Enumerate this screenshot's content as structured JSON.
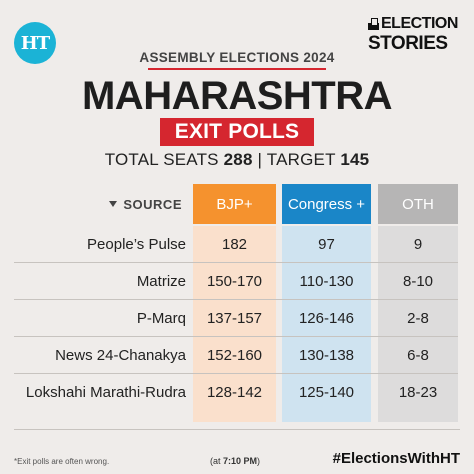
{
  "brand": {
    "logo_text": "HT",
    "badge_line1": "ELECTION",
    "badge_line2": "STORIES"
  },
  "header": {
    "subtitle": "ASSEMBLY ELECTIONS 2024",
    "title": "MAHARASHTRA",
    "badge": "EXIT POLLS",
    "seats_label": "TOTAL SEATS",
    "seats_value": "288",
    "separator": "|",
    "target_label": "TARGET",
    "target_value": "145"
  },
  "table": {
    "source_header": "SOURCE",
    "columns": [
      {
        "label": "BJP+",
        "color": "#f5922e"
      },
      {
        "label": "Congress +",
        "color": "#1a86c8"
      },
      {
        "label": "OTH",
        "color": "#b6b5b5"
      }
    ],
    "rows": [
      {
        "source": "People’s Pulse",
        "bjp": "182",
        "congress": "97",
        "oth": "9"
      },
      {
        "source": "Matrize",
        "bjp": "150-170",
        "congress": "110-130",
        "oth": "8-10"
      },
      {
        "source": "P-Marq",
        "bjp": "137-157",
        "congress": "126-146",
        "oth": "2-8"
      },
      {
        "source": "News 24-Chanakya",
        "bjp": "152-160",
        "congress": "130-138",
        "oth": "6-8"
      },
      {
        "source": "Lokshahi Marathi-Rudra",
        "bjp": "128-142",
        "congress": "125-140",
        "oth": "18-23"
      }
    ]
  },
  "footer": {
    "note": "*Exit polls are often wrong.",
    "time_prefix": "(at",
    "time_value": "7:10 PM",
    "time_suffix": ")",
    "hashtag": "#ElectionsWithHT"
  }
}
